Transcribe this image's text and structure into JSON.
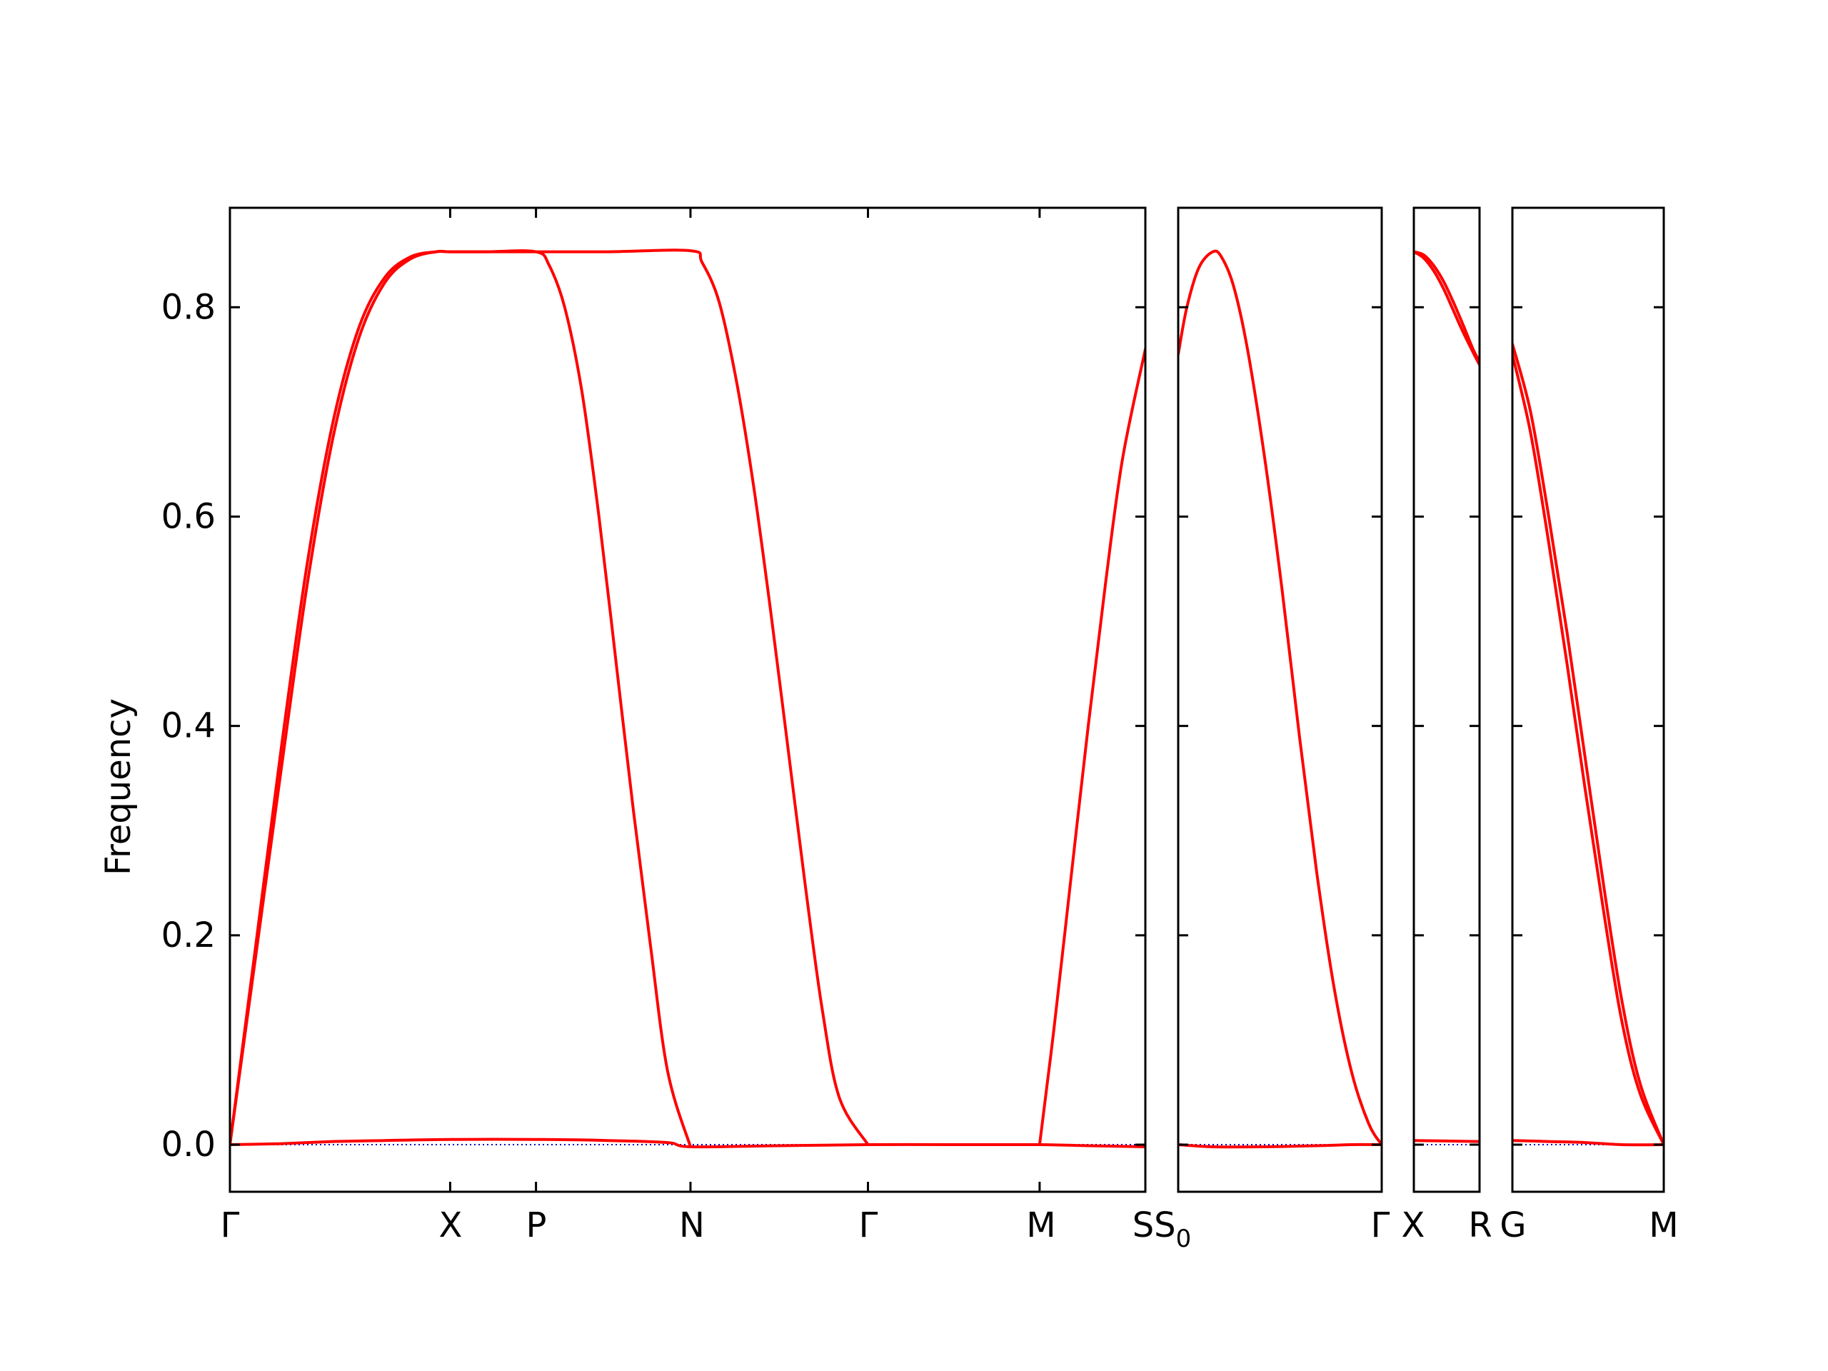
{
  "chart_data": {
    "type": "line",
    "title": "",
    "ylabel": "Frequency",
    "ylim": [
      -0.045,
      0.895
    ],
    "yticks": [
      0.0,
      0.2,
      0.4,
      0.6,
      0.8
    ],
    "ytick_labels": [
      "0.0",
      "0.2",
      "0.4",
      "0.6",
      "0.8"
    ],
    "grid": false,
    "legend": "none",
    "colors": {
      "band": "#ff0000",
      "reference": "#0000cc",
      "frame": "#000000"
    },
    "x_tick_labels": [
      {
        "text": "Γ",
        "sub": ""
      },
      {
        "text": "X",
        "sub": ""
      },
      {
        "text": "P",
        "sub": ""
      },
      {
        "text": "N",
        "sub": ""
      },
      {
        "text": "Γ",
        "sub": ""
      },
      {
        "text": "M",
        "sub": ""
      },
      {
        "text": "SS",
        "sub": "0"
      },
      {
        "text": "Γ",
        "sub": ""
      },
      {
        "text": "X",
        "sub": ""
      },
      {
        "text": "R",
        "sub": ""
      },
      {
        "text": "G",
        "sub": ""
      },
      {
        "text": "M",
        "sub": ""
      }
    ],
    "panels": [
      {
        "name": "Γ-X-P-N-Γ-M-S",
        "xlim": [
          0,
          5.333
        ],
        "ticks": [
          {
            "x": 0,
            "label": "Γ"
          },
          {
            "x": 1.283,
            "label": "X"
          },
          {
            "x": 1.783,
            "label": "P"
          },
          {
            "x": 2.683,
            "label": "N"
          },
          {
            "x": 3.717,
            "label": "Γ"
          },
          {
            "x": 4.717,
            "label": "M"
          }
        ],
        "bands": [
          {
            "x": [
              0,
              0.15,
              0.3,
              0.45,
              0.6,
              0.75,
              0.9,
              1.05,
              1.2,
              1.283,
              1.5,
              1.783,
              1.86,
              1.95,
              2.05,
              2.15,
              2.25,
              2.35,
              2.45,
              2.55,
              2.683
            ],
            "y": [
              0.0,
              0.19,
              0.38,
              0.555,
              0.69,
              0.78,
              0.828,
              0.848,
              0.853,
              0.853,
              0.853,
              0.853,
              0.84,
              0.8,
              0.72,
              0.6,
              0.46,
              0.32,
              0.19,
              0.07,
              -0.002
            ]
          },
          {
            "x": [
              0,
              0.15,
              0.3,
              0.45,
              0.6,
              0.75,
              0.9,
              1.05,
              1.2,
              1.283,
              1.5,
              1.783,
              2.2,
              2.683,
              2.75,
              2.85,
              2.95,
              3.05,
              3.15,
              3.25,
              3.35,
              3.45,
              3.55,
              3.717
            ],
            "y": [
              0.0,
              0.18,
              0.36,
              0.535,
              0.675,
              0.77,
              0.823,
              0.846,
              0.853,
              0.853,
              0.853,
              0.853,
              0.853,
              0.854,
              0.843,
              0.805,
              0.73,
              0.63,
              0.51,
              0.38,
              0.25,
              0.13,
              0.045,
              0.0
            ]
          },
          {
            "x": [
              0,
              0.3,
              0.6,
              0.9,
              1.283,
              1.783,
              2.2,
              2.55,
              2.683,
              3.2,
              3.717,
              4.2,
              4.717,
              5.0,
              5.333
            ],
            "y": [
              0.0,
              0.001,
              0.003,
              0.004,
              0.005,
              0.005,
              0.004,
              0.002,
              -0.002,
              -0.001,
              0.0,
              0.0,
              0.0,
              -0.001,
              -0.002
            ]
          },
          {
            "x": [
              4.717,
              4.8,
              4.9,
              5.0,
              5.1,
              5.2,
              5.333
            ],
            "y": [
              0.0,
              0.11,
              0.255,
              0.4,
              0.535,
              0.655,
              0.76
            ]
          }
        ],
        "reference": {
          "x": [
            0,
            5.333
          ],
          "y": [
            0,
            0
          ]
        }
      },
      {
        "name": "S0-Γ",
        "xlim": [
          0,
          1.175
        ],
        "ticks": [],
        "bands": [
          {
            "x": [
              0,
              0.05,
              0.12,
              0.2,
              0.25,
              0.32,
              0.4,
              0.5,
              0.6,
              0.7,
              0.8,
              0.9,
              1.0,
              1.1,
              1.175
            ],
            "y": [
              0.755,
              0.8,
              0.838,
              0.853,
              0.848,
              0.82,
              0.76,
              0.655,
              0.53,
              0.39,
              0.26,
              0.15,
              0.07,
              0.02,
              0.0
            ]
          },
          {
            "x": [
              0,
              0.2,
              0.5,
              0.8,
              1.0,
              1.175
            ],
            "y": [
              0.0,
              -0.002,
              -0.002,
              -0.001,
              0.0,
              0.0
            ]
          }
        ],
        "reference": {
          "x": [
            0,
            1.175
          ],
          "y": [
            0,
            0
          ]
        }
      },
      {
        "name": "X-R",
        "xlim": [
          0,
          0.333
        ],
        "ticks": [],
        "bands": [
          {
            "x": [
              0,
              0.05,
              0.1,
              0.15,
              0.2,
              0.25,
              0.3,
              0.333
            ],
            "y": [
              0.853,
              0.85,
              0.84,
              0.825,
              0.805,
              0.783,
              0.76,
              0.748
            ]
          },
          {
            "x": [
              0,
              0.05,
              0.1,
              0.15,
              0.2,
              0.25,
              0.3,
              0.333
            ],
            "y": [
              0.853,
              0.847,
              0.835,
              0.818,
              0.797,
              0.776,
              0.757,
              0.745
            ]
          },
          {
            "x": [
              0,
              0.333
            ],
            "y": [
              0.004,
              0.003
            ]
          }
        ],
        "reference": {
          "x": [
            0,
            0.333
          ],
          "y": [
            0,
            0
          ]
        }
      },
      {
        "name": "G-M",
        "xlim": [
          0,
          0.833
        ],
        "ticks": [],
        "bands": [
          {
            "x": [
              0,
              0.1,
              0.2,
              0.3,
              0.4,
              0.5,
              0.6,
              0.7,
              0.833
            ],
            "y": [
              0.765,
              0.7,
              0.6,
              0.49,
              0.37,
              0.25,
              0.14,
              0.06,
              0.0
            ]
          },
          {
            "x": [
              0,
              0.1,
              0.2,
              0.3,
              0.4,
              0.5,
              0.6,
              0.7,
              0.833
            ],
            "y": [
              0.755,
              0.68,
              0.575,
              0.46,
              0.34,
              0.225,
              0.12,
              0.05,
              0.0
            ]
          },
          {
            "x": [
              0,
              0.2,
              0.4,
              0.6,
              0.833
            ],
            "y": [
              0.004,
              0.003,
              0.002,
              0.0,
              0.0
            ]
          }
        ],
        "reference": {
          "x": [
            0,
            0.833
          ],
          "y": [
            0,
            0
          ]
        }
      }
    ]
  }
}
